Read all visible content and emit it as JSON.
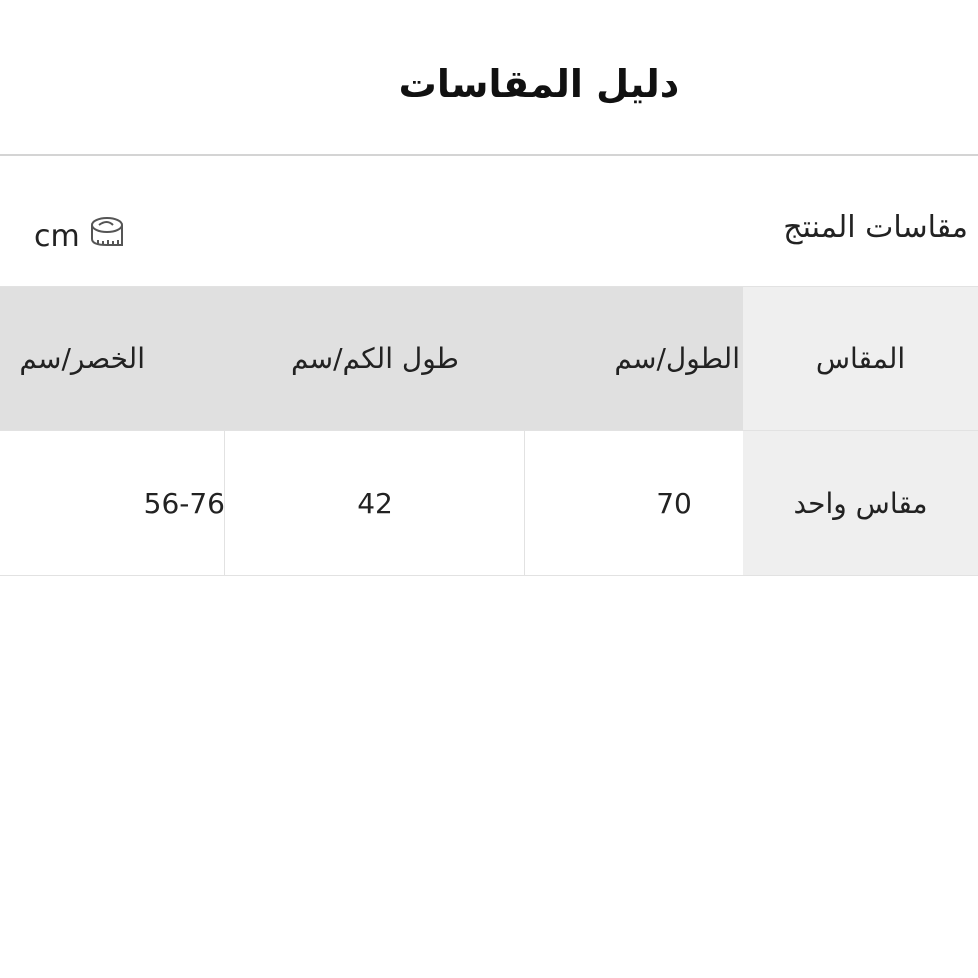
{
  "header": {
    "title": "دليل المقاسات"
  },
  "section": {
    "title": "مقاسات المنتج",
    "unit_label": "cm",
    "unit_icon": "measuring-tape-icon"
  },
  "table": {
    "columns": [
      "المقاس",
      "الطول/سم",
      "طول الكم/سم",
      "الخصر/سم"
    ],
    "rows": [
      [
        "مقاس واحد",
        "70",
        "42",
        "56-76"
      ]
    ]
  },
  "colors": {
    "header_bg": "#e0e0e0",
    "first_col_bg": "#efefef",
    "border": "#e2e2e2"
  }
}
